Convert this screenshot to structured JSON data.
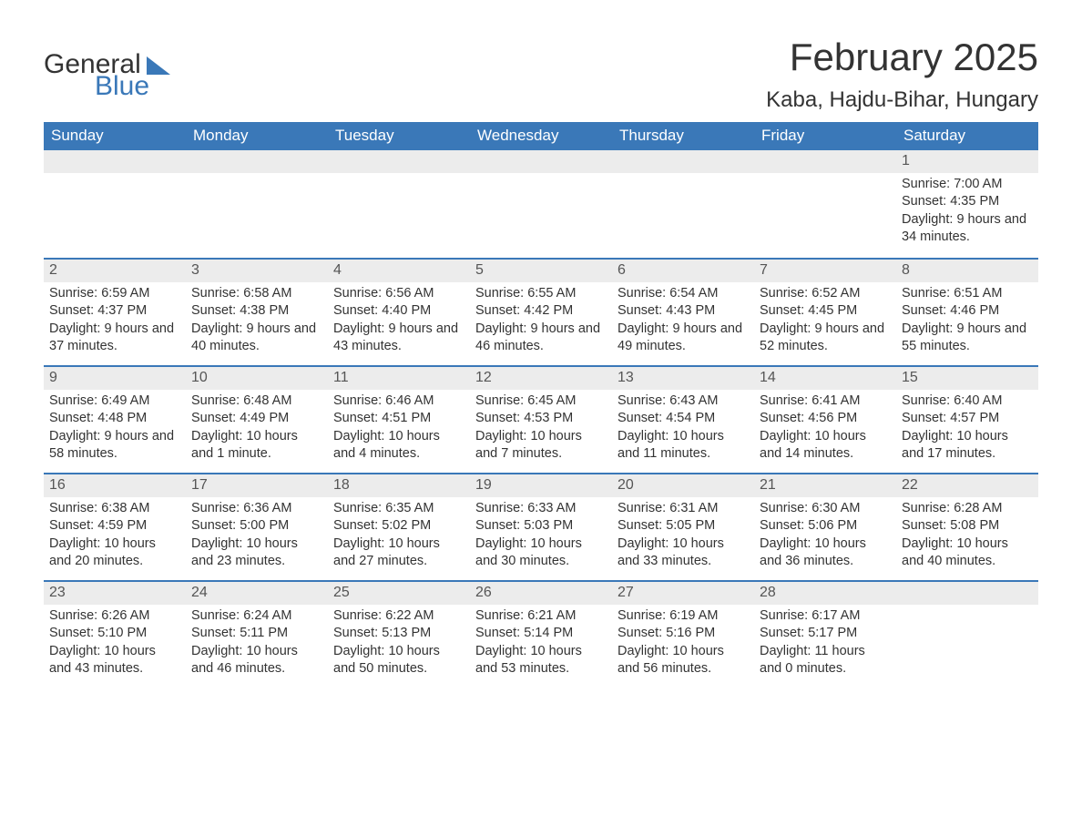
{
  "logo": {
    "word1": "General",
    "word2": "Blue"
  },
  "title": {
    "month": "February 2025",
    "location": "Kaba, Hajdu-Bihar, Hungary"
  },
  "styling": {
    "header_bg": "#3a78b8",
    "header_text": "#ffffff",
    "daynum_bg": "#ececec",
    "row_border": "#3a78b8",
    "body_text": "#333333",
    "page_bg": "#ffffff",
    "title_fontsize_pt": 32,
    "location_fontsize_pt": 18,
    "weekday_fontsize_pt": 13,
    "cell_fontsize_pt": 11
  },
  "weekdays": [
    "Sunday",
    "Monday",
    "Tuesday",
    "Wednesday",
    "Thursday",
    "Friday",
    "Saturday"
  ],
  "weeks": [
    [
      {
        "n": "",
        "sunrise": "",
        "sunset": "",
        "daylight": ""
      },
      {
        "n": "",
        "sunrise": "",
        "sunset": "",
        "daylight": ""
      },
      {
        "n": "",
        "sunrise": "",
        "sunset": "",
        "daylight": ""
      },
      {
        "n": "",
        "sunrise": "",
        "sunset": "",
        "daylight": ""
      },
      {
        "n": "",
        "sunrise": "",
        "sunset": "",
        "daylight": ""
      },
      {
        "n": "",
        "sunrise": "",
        "sunset": "",
        "daylight": ""
      },
      {
        "n": "1",
        "sunrise": "Sunrise: 7:00 AM",
        "sunset": "Sunset: 4:35 PM",
        "daylight": "Daylight: 9 hours and 34 minutes."
      }
    ],
    [
      {
        "n": "2",
        "sunrise": "Sunrise: 6:59 AM",
        "sunset": "Sunset: 4:37 PM",
        "daylight": "Daylight: 9 hours and 37 minutes."
      },
      {
        "n": "3",
        "sunrise": "Sunrise: 6:58 AM",
        "sunset": "Sunset: 4:38 PM",
        "daylight": "Daylight: 9 hours and 40 minutes."
      },
      {
        "n": "4",
        "sunrise": "Sunrise: 6:56 AM",
        "sunset": "Sunset: 4:40 PM",
        "daylight": "Daylight: 9 hours and 43 minutes."
      },
      {
        "n": "5",
        "sunrise": "Sunrise: 6:55 AM",
        "sunset": "Sunset: 4:42 PM",
        "daylight": "Daylight: 9 hours and 46 minutes."
      },
      {
        "n": "6",
        "sunrise": "Sunrise: 6:54 AM",
        "sunset": "Sunset: 4:43 PM",
        "daylight": "Daylight: 9 hours and 49 minutes."
      },
      {
        "n": "7",
        "sunrise": "Sunrise: 6:52 AM",
        "sunset": "Sunset: 4:45 PM",
        "daylight": "Daylight: 9 hours and 52 minutes."
      },
      {
        "n": "8",
        "sunrise": "Sunrise: 6:51 AM",
        "sunset": "Sunset: 4:46 PM",
        "daylight": "Daylight: 9 hours and 55 minutes."
      }
    ],
    [
      {
        "n": "9",
        "sunrise": "Sunrise: 6:49 AM",
        "sunset": "Sunset: 4:48 PM",
        "daylight": "Daylight: 9 hours and 58 minutes."
      },
      {
        "n": "10",
        "sunrise": "Sunrise: 6:48 AM",
        "sunset": "Sunset: 4:49 PM",
        "daylight": "Daylight: 10 hours and 1 minute."
      },
      {
        "n": "11",
        "sunrise": "Sunrise: 6:46 AM",
        "sunset": "Sunset: 4:51 PM",
        "daylight": "Daylight: 10 hours and 4 minutes."
      },
      {
        "n": "12",
        "sunrise": "Sunrise: 6:45 AM",
        "sunset": "Sunset: 4:53 PM",
        "daylight": "Daylight: 10 hours and 7 minutes."
      },
      {
        "n": "13",
        "sunrise": "Sunrise: 6:43 AM",
        "sunset": "Sunset: 4:54 PM",
        "daylight": "Daylight: 10 hours and 11 minutes."
      },
      {
        "n": "14",
        "sunrise": "Sunrise: 6:41 AM",
        "sunset": "Sunset: 4:56 PM",
        "daylight": "Daylight: 10 hours and 14 minutes."
      },
      {
        "n": "15",
        "sunrise": "Sunrise: 6:40 AM",
        "sunset": "Sunset: 4:57 PM",
        "daylight": "Daylight: 10 hours and 17 minutes."
      }
    ],
    [
      {
        "n": "16",
        "sunrise": "Sunrise: 6:38 AM",
        "sunset": "Sunset: 4:59 PM",
        "daylight": "Daylight: 10 hours and 20 minutes."
      },
      {
        "n": "17",
        "sunrise": "Sunrise: 6:36 AM",
        "sunset": "Sunset: 5:00 PM",
        "daylight": "Daylight: 10 hours and 23 minutes."
      },
      {
        "n": "18",
        "sunrise": "Sunrise: 6:35 AM",
        "sunset": "Sunset: 5:02 PM",
        "daylight": "Daylight: 10 hours and 27 minutes."
      },
      {
        "n": "19",
        "sunrise": "Sunrise: 6:33 AM",
        "sunset": "Sunset: 5:03 PM",
        "daylight": "Daylight: 10 hours and 30 minutes."
      },
      {
        "n": "20",
        "sunrise": "Sunrise: 6:31 AM",
        "sunset": "Sunset: 5:05 PM",
        "daylight": "Daylight: 10 hours and 33 minutes."
      },
      {
        "n": "21",
        "sunrise": "Sunrise: 6:30 AM",
        "sunset": "Sunset: 5:06 PM",
        "daylight": "Daylight: 10 hours and 36 minutes."
      },
      {
        "n": "22",
        "sunrise": "Sunrise: 6:28 AM",
        "sunset": "Sunset: 5:08 PM",
        "daylight": "Daylight: 10 hours and 40 minutes."
      }
    ],
    [
      {
        "n": "23",
        "sunrise": "Sunrise: 6:26 AM",
        "sunset": "Sunset: 5:10 PM",
        "daylight": "Daylight: 10 hours and 43 minutes."
      },
      {
        "n": "24",
        "sunrise": "Sunrise: 6:24 AM",
        "sunset": "Sunset: 5:11 PM",
        "daylight": "Daylight: 10 hours and 46 minutes."
      },
      {
        "n": "25",
        "sunrise": "Sunrise: 6:22 AM",
        "sunset": "Sunset: 5:13 PM",
        "daylight": "Daylight: 10 hours and 50 minutes."
      },
      {
        "n": "26",
        "sunrise": "Sunrise: 6:21 AM",
        "sunset": "Sunset: 5:14 PM",
        "daylight": "Daylight: 10 hours and 53 minutes."
      },
      {
        "n": "27",
        "sunrise": "Sunrise: 6:19 AM",
        "sunset": "Sunset: 5:16 PM",
        "daylight": "Daylight: 10 hours and 56 minutes."
      },
      {
        "n": "28",
        "sunrise": "Sunrise: 6:17 AM",
        "sunset": "Sunset: 5:17 PM",
        "daylight": "Daylight: 11 hours and 0 minutes."
      },
      {
        "n": "",
        "sunrise": "",
        "sunset": "",
        "daylight": ""
      }
    ]
  ]
}
